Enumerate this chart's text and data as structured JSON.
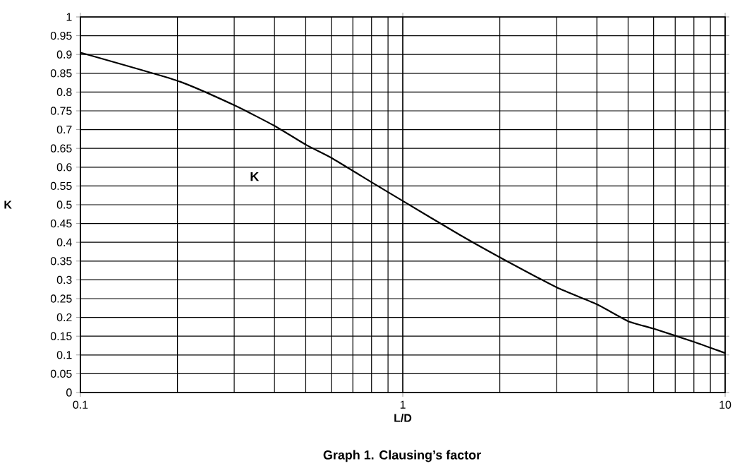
{
  "chart_data": {
    "type": "line",
    "title": "Graph 1.  Clausing’s factor",
    "xlabel": "L/D",
    "ylabel": "K",
    "x": [
      0.1,
      0.2,
      0.3,
      0.4,
      0.5,
      0.6,
      0.8,
      1,
      1.5,
      2,
      3,
      4,
      5,
      6,
      8,
      10
    ],
    "series": [
      {
        "color": "#000000",
        "values": [
          0.905,
          0.83,
          0.765,
          0.71,
          0.66,
          0.625,
          0.56,
          0.51,
          0.42,
          0.36,
          0.28,
          0.235,
          0.19,
          0.17,
          0.135,
          0.105
        ]
      }
    ],
    "log": "x",
    "grid": true,
    "marker": "none",
    "line_style": "solid",
    "xlim": [
      0.1,
      10
    ],
    "xticks": [
      0.1,
      1,
      10
    ],
    "ylim": [
      0,
      1
    ],
    "yticks": [
      0,
      0.05,
      0.1,
      0.15,
      0.2,
      0.25,
      0.3,
      0.35,
      0.4,
      0.45,
      0.5,
      0.55,
      0.6,
      0.65,
      0.7,
      0.75,
      0.8,
      0.85,
      0.9,
      0.95,
      1
    ],
    "annotations": [
      "K"
    ]
  }
}
